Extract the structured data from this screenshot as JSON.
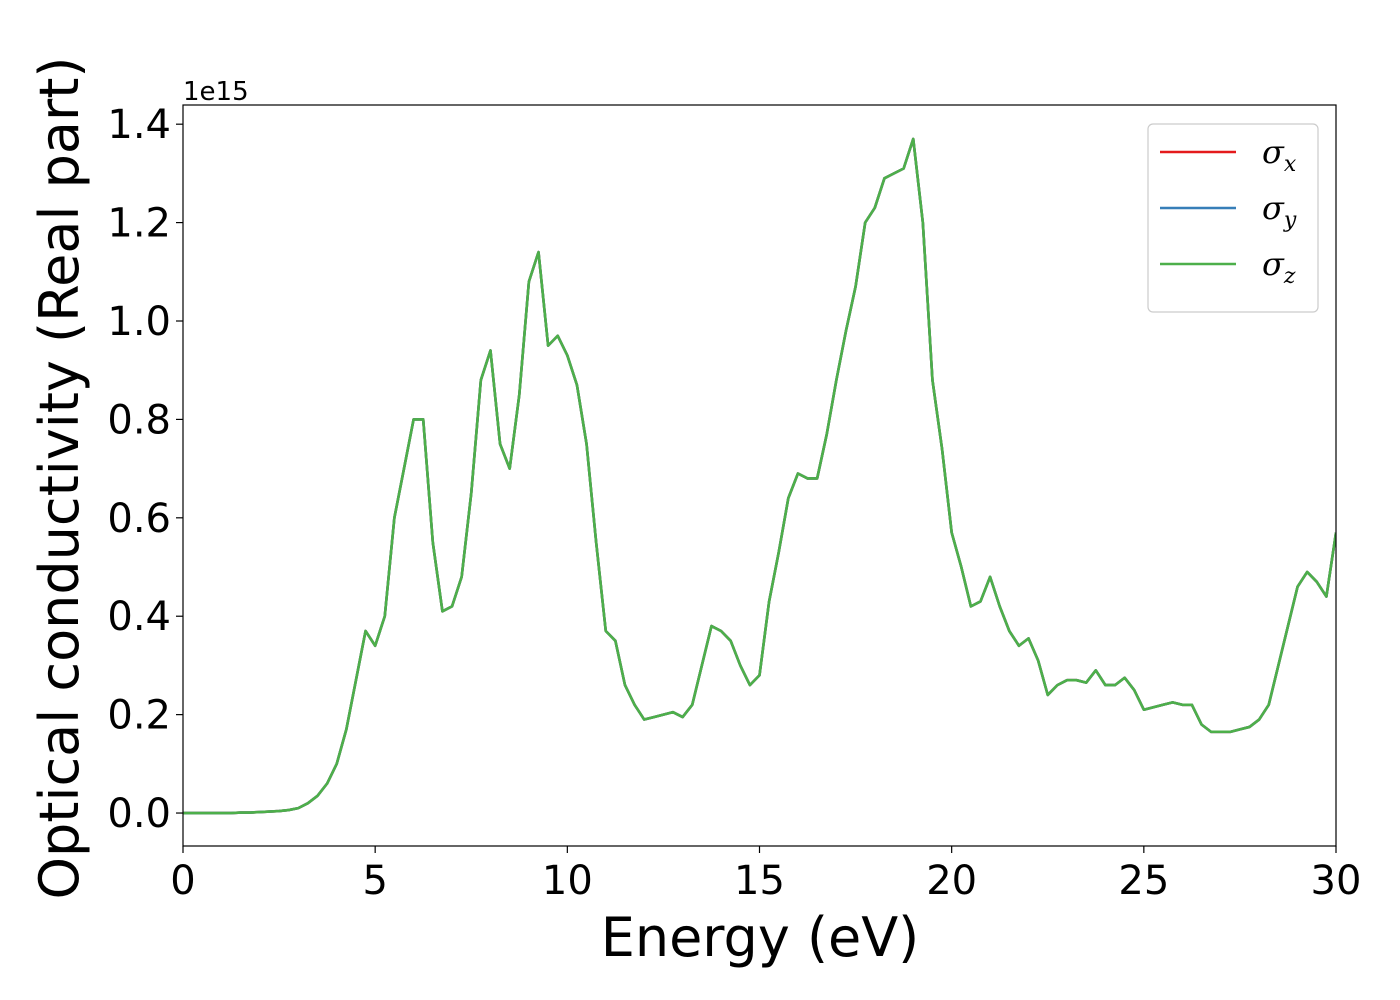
{
  "chart_data": {
    "type": "line",
    "xlabel": "Energy (eV)",
    "ylabel": "Optical conductivity (Real part)",
    "offset_text": "1e15",
    "xlim": [
      0,
      30
    ],
    "ylim": [
      -0.067,
      1.439
    ],
    "xticks": [
      0,
      5,
      10,
      15,
      20,
      25,
      30
    ],
    "yticks": [
      {
        "value": 0,
        "label": "0.0"
      },
      {
        "value": 0.2,
        "label": "0.2"
      },
      {
        "value": 0.4,
        "label": "0.4"
      },
      {
        "value": 0.6,
        "label": "0.6"
      },
      {
        "value": 0.8,
        "label": "0.8"
      },
      {
        "value": 1.0,
        "label": "1.0"
      },
      {
        "value": 1.2,
        "label": "1.2"
      },
      {
        "value": 1.4,
        "label": "1.4"
      }
    ],
    "legend": "upper right",
    "x": [
      0,
      0.25,
      0.5,
      0.75,
      1,
      1.25,
      1.5,
      1.75,
      2,
      2.25,
      2.5,
      2.75,
      3,
      3.25,
      3.5,
      3.75,
      4,
      4.25,
      4.5,
      4.75,
      5,
      5.25,
      5.5,
      5.75,
      6,
      6.25,
      6.5,
      6.75,
      7,
      7.25,
      7.5,
      7.75,
      8,
      8.25,
      8.5,
      8.75,
      9,
      9.25,
      9.5,
      9.75,
      10,
      10.25,
      10.5,
      10.75,
      11,
      11.25,
      11.5,
      11.75,
      12,
      12.25,
      12.5,
      12.75,
      13,
      13.25,
      13.5,
      13.75,
      14,
      14.25,
      14.5,
      14.75,
      15,
      15.25,
      15.5,
      15.75,
      16,
      16.25,
      16.5,
      16.75,
      17,
      17.25,
      17.5,
      17.75,
      18,
      18.25,
      18.5,
      18.75,
      19,
      19.25,
      19.5,
      19.75,
      20,
      20.25,
      20.5,
      20.75,
      21,
      21.25,
      21.5,
      21.75,
      22,
      22.25,
      22.5,
      22.75,
      23,
      23.25,
      23.5,
      23.75,
      24,
      24.25,
      24.5,
      24.75,
      25,
      25.25,
      25.5,
      25.75,
      26,
      26.25,
      26.5,
      26.75,
      27,
      27.25,
      27.5,
      27.75,
      28,
      28.25,
      28.5,
      28.75,
      29,
      29.25,
      29.5,
      29.75,
      30
    ],
    "series": [
      {
        "name": "σx",
        "color": "#e41a1c",
        "values": [
          0,
          0,
          0,
          0,
          0,
          0,
          0.001,
          0.001,
          0.002,
          0.003,
          0.004,
          0.006,
          0.01,
          0.02,
          0.035,
          0.06,
          0.1,
          0.17,
          0.27,
          0.37,
          0.34,
          0.4,
          0.6,
          0.7,
          0.8,
          0.8,
          0.55,
          0.41,
          0.42,
          0.48,
          0.65,
          0.88,
          0.94,
          0.75,
          0.7,
          0.85,
          1.08,
          1.14,
          0.95,
          0.97,
          0.93,
          0.87,
          0.75,
          0.55,
          0.37,
          0.35,
          0.26,
          0.22,
          0.19,
          0.195,
          0.2,
          0.205,
          0.195,
          0.22,
          0.3,
          0.38,
          0.37,
          0.35,
          0.3,
          0.26,
          0.28,
          0.43,
          0.53,
          0.64,
          0.69,
          0.68,
          0.68,
          0.77,
          0.88,
          0.98,
          1.07,
          1.2,
          1.23,
          1.29,
          1.3,
          1.31,
          1.37,
          1.2,
          0.88,
          0.74,
          0.57,
          0.5,
          0.42,
          0.43,
          0.48,
          0.42,
          0.37,
          0.34,
          0.355,
          0.31,
          0.24,
          0.26,
          0.27,
          0.27,
          0.265,
          0.29,
          0.26,
          0.26,
          0.275,
          0.25,
          0.21,
          0.215,
          0.22,
          0.225,
          0.22,
          0.22,
          0.18,
          0.165,
          0.165,
          0.165,
          0.17,
          0.175,
          0.19,
          0.22,
          0.3,
          0.38,
          0.46,
          0.49,
          0.47,
          0.44,
          0.57
        ]
      },
      {
        "name": "σy",
        "color": "#377eb8",
        "values": [
          0,
          0,
          0,
          0,
          0,
          0,
          0.001,
          0.001,
          0.002,
          0.003,
          0.004,
          0.006,
          0.01,
          0.02,
          0.035,
          0.06,
          0.1,
          0.17,
          0.27,
          0.37,
          0.34,
          0.4,
          0.6,
          0.7,
          0.8,
          0.8,
          0.55,
          0.41,
          0.42,
          0.48,
          0.65,
          0.88,
          0.94,
          0.75,
          0.7,
          0.85,
          1.08,
          1.14,
          0.95,
          0.97,
          0.93,
          0.87,
          0.75,
          0.55,
          0.37,
          0.35,
          0.26,
          0.22,
          0.19,
          0.195,
          0.2,
          0.205,
          0.195,
          0.22,
          0.3,
          0.38,
          0.37,
          0.35,
          0.3,
          0.26,
          0.28,
          0.43,
          0.53,
          0.64,
          0.69,
          0.68,
          0.68,
          0.77,
          0.88,
          0.98,
          1.07,
          1.2,
          1.23,
          1.29,
          1.3,
          1.31,
          1.37,
          1.2,
          0.88,
          0.74,
          0.57,
          0.5,
          0.42,
          0.43,
          0.48,
          0.42,
          0.37,
          0.34,
          0.355,
          0.31,
          0.24,
          0.26,
          0.27,
          0.27,
          0.265,
          0.29,
          0.26,
          0.26,
          0.275,
          0.25,
          0.21,
          0.215,
          0.22,
          0.225,
          0.22,
          0.22,
          0.18,
          0.165,
          0.165,
          0.165,
          0.17,
          0.175,
          0.19,
          0.22,
          0.3,
          0.38,
          0.46,
          0.49,
          0.47,
          0.44,
          0.57
        ]
      },
      {
        "name": "σz",
        "color": "#4daf4a",
        "values": [
          0,
          0,
          0,
          0,
          0,
          0,
          0.001,
          0.001,
          0.002,
          0.003,
          0.004,
          0.006,
          0.01,
          0.02,
          0.035,
          0.06,
          0.1,
          0.17,
          0.27,
          0.37,
          0.34,
          0.4,
          0.6,
          0.7,
          0.8,
          0.8,
          0.55,
          0.41,
          0.42,
          0.48,
          0.65,
          0.88,
          0.94,
          0.75,
          0.7,
          0.85,
          1.08,
          1.14,
          0.95,
          0.97,
          0.93,
          0.87,
          0.75,
          0.55,
          0.37,
          0.35,
          0.26,
          0.22,
          0.19,
          0.195,
          0.2,
          0.205,
          0.195,
          0.22,
          0.3,
          0.38,
          0.37,
          0.35,
          0.3,
          0.26,
          0.28,
          0.43,
          0.53,
          0.64,
          0.69,
          0.68,
          0.68,
          0.77,
          0.88,
          0.98,
          1.07,
          1.2,
          1.23,
          1.29,
          1.3,
          1.31,
          1.37,
          1.2,
          0.88,
          0.74,
          0.57,
          0.5,
          0.42,
          0.43,
          0.48,
          0.42,
          0.37,
          0.34,
          0.355,
          0.31,
          0.24,
          0.26,
          0.27,
          0.27,
          0.265,
          0.29,
          0.26,
          0.26,
          0.275,
          0.25,
          0.21,
          0.215,
          0.22,
          0.225,
          0.22,
          0.22,
          0.18,
          0.165,
          0.165,
          0.165,
          0.17,
          0.175,
          0.19,
          0.22,
          0.3,
          0.38,
          0.46,
          0.49,
          0.47,
          0.44,
          0.57
        ]
      }
    ]
  }
}
